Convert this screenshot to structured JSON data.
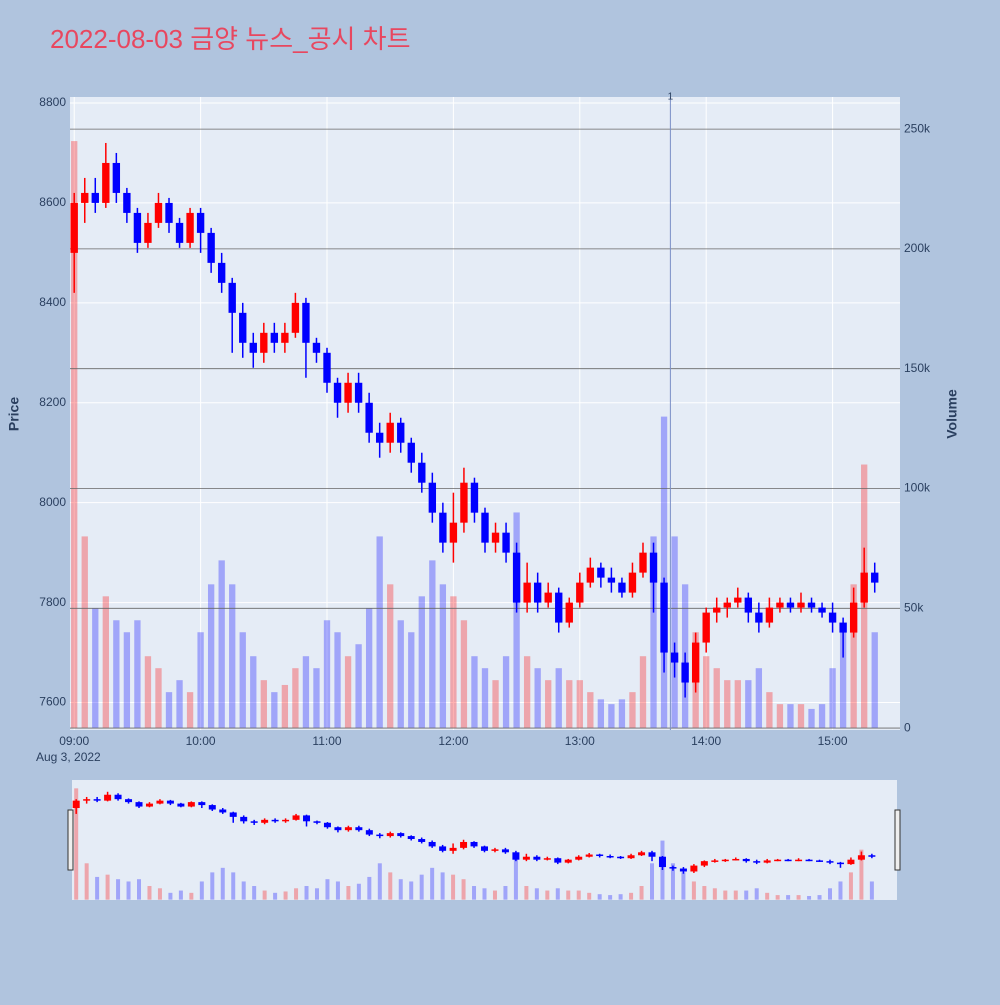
{
  "chart_data": {
    "type": "candlestick",
    "title": "2022-08-03 금양 뉴스_공시 차트",
    "y_label": "Price",
    "y2_label": "Volume",
    "x_date_label": "Aug 3, 2022",
    "increasing_color": "#ff0000",
    "decreasing_color": "#0000ff",
    "annotation": {
      "text": "1",
      "x": "13:43"
    },
    "xlim": [
      "08:58",
      "15:32"
    ],
    "xticks": [
      "09:00",
      "10:00",
      "11:00",
      "12:00",
      "13:00",
      "14:00",
      "15:00"
    ],
    "ylim": [
      7545,
      8812
    ],
    "yticks": [
      7600,
      7800,
      8000,
      8200,
      8400,
      8600,
      8800
    ],
    "y2lim": [
      -800,
      263400
    ],
    "y2ticks": [
      0,
      {
        "value": 50000,
        "label": "50k"
      },
      {
        "value": 100000,
        "label": "100k"
      },
      {
        "value": 150000,
        "label": "150k"
      },
      {
        "value": 200000,
        "label": "200k"
      },
      {
        "value": 250000,
        "label": "250k"
      }
    ],
    "grid": true,
    "x": [
      "09:00",
      "09:05",
      "09:10",
      "09:15",
      "09:20",
      "09:25",
      "09:30",
      "09:35",
      "09:40",
      "09:45",
      "09:50",
      "09:55",
      "10:00",
      "10:05",
      "10:10",
      "10:15",
      "10:20",
      "10:25",
      "10:30",
      "10:35",
      "10:40",
      "10:45",
      "10:50",
      "10:55",
      "11:00",
      "11:05",
      "11:10",
      "11:15",
      "11:20",
      "11:25",
      "11:30",
      "11:35",
      "11:40",
      "11:45",
      "11:50",
      "11:55",
      "12:00",
      "12:05",
      "12:10",
      "12:15",
      "12:20",
      "12:25",
      "12:30",
      "12:35",
      "12:40",
      "12:45",
      "12:50",
      "12:55",
      "13:00",
      "13:05",
      "13:10",
      "13:15",
      "13:20",
      "13:25",
      "13:30",
      "13:35",
      "13:40",
      "13:45",
      "13:50",
      "13:55",
      "14:00",
      "14:05",
      "14:10",
      "14:15",
      "14:20",
      "14:25",
      "14:30",
      "14:35",
      "14:40",
      "14:45",
      "14:50",
      "14:55",
      "15:00",
      "15:05",
      "15:10",
      "15:15",
      "15:20"
    ],
    "open": [
      8500,
      8600,
      8620,
      8600,
      8680,
      8620,
      8580,
      8520,
      8560,
      8600,
      8560,
      8520,
      8580,
      8540,
      8480,
      8440,
      8380,
      8320,
      8300,
      8340,
      8320,
      8340,
      8400,
      8320,
      8300,
      8240,
      8200,
      8240,
      8200,
      8140,
      8120,
      8160,
      8120,
      8080,
      8040,
      7980,
      7920,
      7960,
      8040,
      7980,
      7920,
      7940,
      7900,
      7800,
      7840,
      7800,
      7820,
      7760,
      7800,
      7840,
      7870,
      7850,
      7840,
      7820,
      7860,
      7900,
      7840,
      7700,
      7680,
      7640,
      7720,
      7780,
      7790,
      7800,
      7810,
      7780,
      7760,
      7790,
      7800,
      7790,
      7800,
      7790,
      7780,
      7760,
      7740,
      7800,
      7860
    ],
    "high": [
      8620,
      8650,
      8650,
      8720,
      8700,
      8630,
      8590,
      8580,
      8620,
      8610,
      8570,
      8590,
      8590,
      8550,
      8500,
      8450,
      8400,
      8340,
      8360,
      8360,
      8360,
      8420,
      8410,
      8330,
      8310,
      8250,
      8260,
      8260,
      8220,
      8160,
      8180,
      8170,
      8130,
      8100,
      8060,
      8000,
      8020,
      8070,
      8050,
      7990,
      7960,
      7960,
      7920,
      7880,
      7860,
      7840,
      7830,
      7810,
      7860,
      7890,
      7880,
      7870,
      7850,
      7880,
      7920,
      7920,
      7850,
      7720,
      7700,
      7740,
      7790,
      7810,
      7810,
      7830,
      7820,
      7800,
      7810,
      7810,
      7810,
      7820,
      7810,
      7800,
      7800,
      7770,
      7830,
      7910,
      7880
    ],
    "low": [
      8420,
      8560,
      8580,
      8590,
      8600,
      8560,
      8500,
      8510,
      8550,
      8540,
      8510,
      8510,
      8500,
      8460,
      8420,
      8300,
      8290,
      8270,
      8280,
      8300,
      8300,
      8330,
      8250,
      8280,
      8220,
      8170,
      8180,
      8180,
      8120,
      8090,
      8100,
      8100,
      8060,
      8020,
      7960,
      7900,
      7880,
      7940,
      7960,
      7900,
      7900,
      7880,
      7780,
      7780,
      7780,
      7790,
      7740,
      7750,
      7790,
      7830,
      7830,
      7820,
      7810,
      7810,
      7850,
      7780,
      7660,
      7650,
      7610,
      7620,
      7700,
      7760,
      7770,
      7790,
      7760,
      7740,
      7750,
      7780,
      7780,
      7780,
      7780,
      7770,
      7740,
      7690,
      7730,
      7790,
      7820
    ],
    "close": [
      8600,
      8620,
      8600,
      8680,
      8620,
      8580,
      8520,
      8560,
      8600,
      8560,
      8520,
      8580,
      8540,
      8480,
      8440,
      8380,
      8320,
      8300,
      8340,
      8320,
      8340,
      8400,
      8320,
      8300,
      8240,
      8200,
      8240,
      8200,
      8140,
      8120,
      8160,
      8120,
      8080,
      8040,
      7980,
      7920,
      7960,
      8040,
      7980,
      7920,
      7940,
      7900,
      7800,
      7840,
      7800,
      7820,
      7760,
      7800,
      7840,
      7870,
      7850,
      7840,
      7820,
      7860,
      7900,
      7840,
      7700,
      7680,
      7640,
      7720,
      7780,
      7790,
      7800,
      7810,
      7780,
      7760,
      7790,
      7800,
      7790,
      7800,
      7790,
      7780,
      7760,
      7740,
      7800,
      7860,
      7840
    ],
    "volume": [
      245000,
      80000,
      50000,
      55000,
      45000,
      40000,
      45000,
      30000,
      25000,
      15000,
      20000,
      15000,
      40000,
      60000,
      70000,
      60000,
      40000,
      30000,
      20000,
      15000,
      18000,
      25000,
      30000,
      25000,
      45000,
      40000,
      30000,
      35000,
      50000,
      80000,
      60000,
      45000,
      40000,
      55000,
      70000,
      60000,
      55000,
      45000,
      30000,
      25000,
      20000,
      30000,
      90000,
      30000,
      25000,
      20000,
      25000,
      20000,
      20000,
      15000,
      12000,
      10000,
      12000,
      15000,
      30000,
      80000,
      130000,
      80000,
      60000,
      40000,
      30000,
      25000,
      20000,
      20000,
      20000,
      25000,
      15000,
      10000,
      10000,
      10000,
      8000,
      10000,
      25000,
      40000,
      60000,
      110000,
      40000
    ]
  }
}
